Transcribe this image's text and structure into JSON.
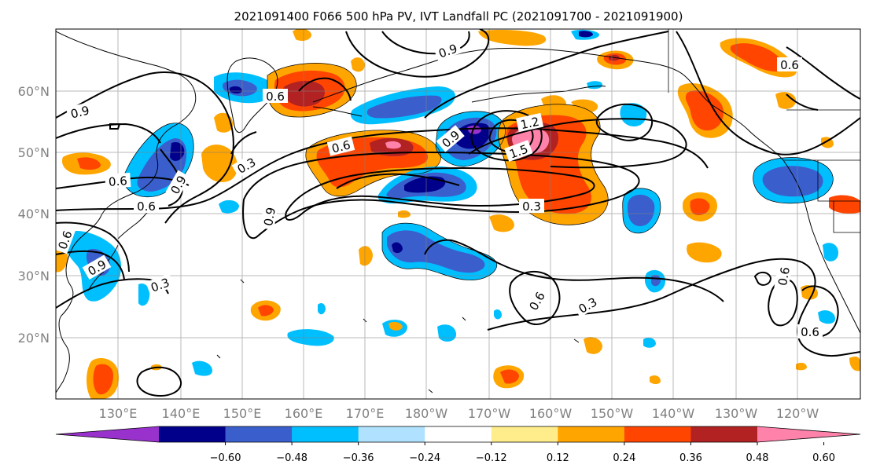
{
  "title": "2021091400 F066 500 hPa PV, IVT Landfall PC (2021091700 - 2021091900)",
  "lon_labels": [
    "130°E",
    "140°E",
    "150°E",
    "160°E",
    "170°E",
    "180°W",
    "170°W",
    "160°W",
    "150°W",
    "140°W",
    "130°W",
    "120°W"
  ],
  "lat_labels": [
    "60°N",
    "50°N",
    "40°N",
    "30°N",
    "20°N"
  ],
  "colorbar": {
    "tick_labels": [
      "−0.60",
      "−0.48",
      "−0.36",
      "−0.24",
      "−0.12",
      "0.12",
      "0.24",
      "0.36",
      "0.48",
      "0.60"
    ],
    "colors": [
      "#9932cc",
      "#00008b",
      "#3a5fcd",
      "#00bfff",
      "#b0e2ff",
      "#ffffff",
      "#ffec8b",
      "#ffa500",
      "#ff4500",
      "#b22222",
      "#ff82ab"
    ]
  },
  "contour_labels": [
    {
      "text": "0.9"
    },
    {
      "text": "0.6"
    },
    {
      "text": "0.9"
    },
    {
      "text": "0.6"
    },
    {
      "text": "0.6"
    },
    {
      "text": "0.9"
    },
    {
      "text": "0.3"
    },
    {
      "text": "0.3"
    },
    {
      "text": "1.2"
    },
    {
      "text": "1.5"
    },
    {
      "text": "0.9"
    },
    {
      "text": "0.6"
    },
    {
      "text": "0.3"
    },
    {
      "text": "0.6"
    },
    {
      "text": "0.6"
    },
    {
      "text": "0.6"
    },
    {
      "text": "0.6"
    },
    {
      "text": "0.3"
    },
    {
      "text": "0.6"
    },
    {
      "text": "0.9"
    },
    {
      "text": "0.9"
    }
  ]
}
